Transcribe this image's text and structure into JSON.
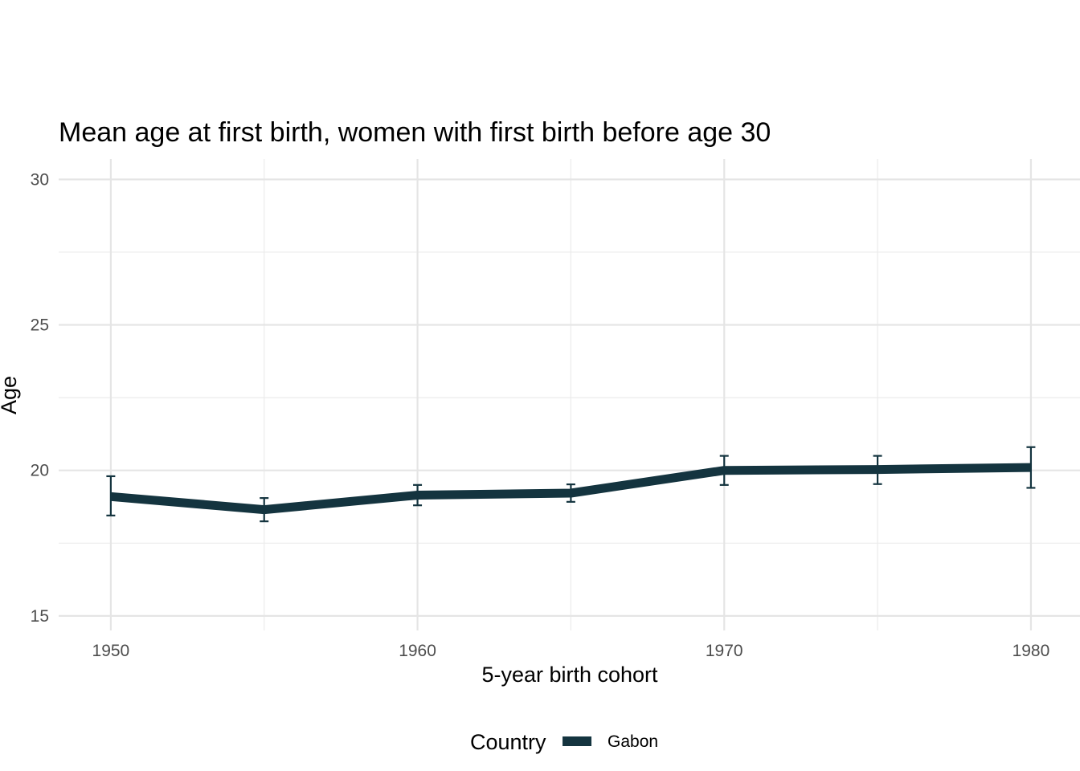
{
  "chart_data": {
    "type": "line",
    "title": "Mean age at first birth, women with first birth before age 30",
    "xlabel": "5-year birth cohort",
    "ylabel": "Age",
    "xlim": [
      1948.3,
      1981.6
    ],
    "ylim": [
      14.5,
      30.7
    ],
    "x_ticks": [
      1950,
      1960,
      1970,
      1980
    ],
    "x_minor": [
      1955,
      1965,
      1975
    ],
    "y_ticks": [
      15,
      20,
      25,
      30
    ],
    "y_minor": [
      17.5,
      22.5,
      27.5
    ],
    "grid": true,
    "legend": {
      "title": "Country",
      "position": "bottom"
    },
    "series": [
      {
        "name": "Gabon",
        "color": "#14343f",
        "x": [
          1950,
          1955,
          1960,
          1965,
          1970,
          1975,
          1980
        ],
        "y": [
          19.1,
          18.65,
          19.15,
          19.22,
          20.0,
          20.03,
          20.1
        ],
        "ymin": [
          18.45,
          18.25,
          18.8,
          18.92,
          19.5,
          19.53,
          19.4
        ],
        "ymax": [
          19.8,
          19.05,
          19.5,
          19.52,
          20.5,
          20.5,
          20.8
        ]
      }
    ]
  }
}
